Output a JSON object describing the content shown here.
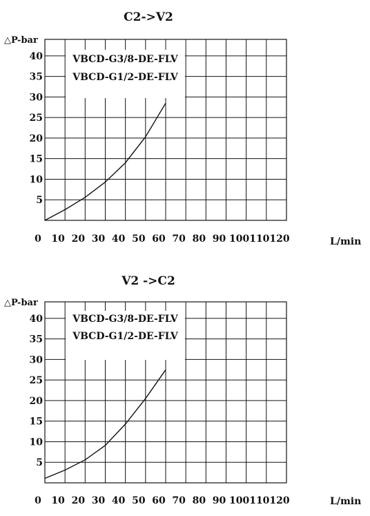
{
  "chart_data": [
    {
      "type": "line",
      "title": "C2->V2",
      "ylabel": "△P-bar",
      "xlabel": "L/min",
      "x_ticks": [
        "0",
        "10",
        "20",
        "30",
        "40",
        "50",
        "60",
        "70",
        "80",
        "90",
        "100",
        "110",
        "120"
      ],
      "y_ticks": [
        "5",
        "10",
        "15",
        "20",
        "25",
        "30",
        "35",
        "40"
      ],
      "xlim": [
        0,
        120
      ],
      "ylim": [
        0,
        44
      ],
      "grid": true,
      "legend": [
        "VBCD-G3/8-DE-FLV",
        "VBCD-G1/2-DE-FLV"
      ],
      "series": [
        {
          "x": [
            0,
            10,
            20,
            30,
            40,
            50,
            60
          ],
          "y": [
            0,
            2.6,
            5.6,
            9.3,
            14.0,
            20.3,
            28.5
          ]
        }
      ],
      "line_color": "#111111"
    },
    {
      "type": "line",
      "title": "V2 ->C2",
      "ylabel": "△P-bar",
      "xlabel": "L/min",
      "x_ticks": [
        "0",
        "10",
        "20",
        "30",
        "40",
        "50",
        "60",
        "70",
        "80",
        "90",
        "100",
        "110",
        "120"
      ],
      "y_ticks": [
        "5",
        "10",
        "15",
        "20",
        "25",
        "30",
        "35",
        "40"
      ],
      "xlim": [
        0,
        120
      ],
      "ylim": [
        0,
        44
      ],
      "grid": true,
      "legend": [
        "VBCD-G3/8-DE-FLV",
        "VBCD-G1/2-DE-FLV"
      ],
      "series": [
        {
          "x": [
            0,
            10,
            20,
            30,
            40,
            50,
            60
          ],
          "y": [
            1.1,
            3.1,
            5.6,
            9.1,
            14.3,
            20.5,
            27.5
          ]
        }
      ],
      "line_color": "#111111"
    }
  ]
}
